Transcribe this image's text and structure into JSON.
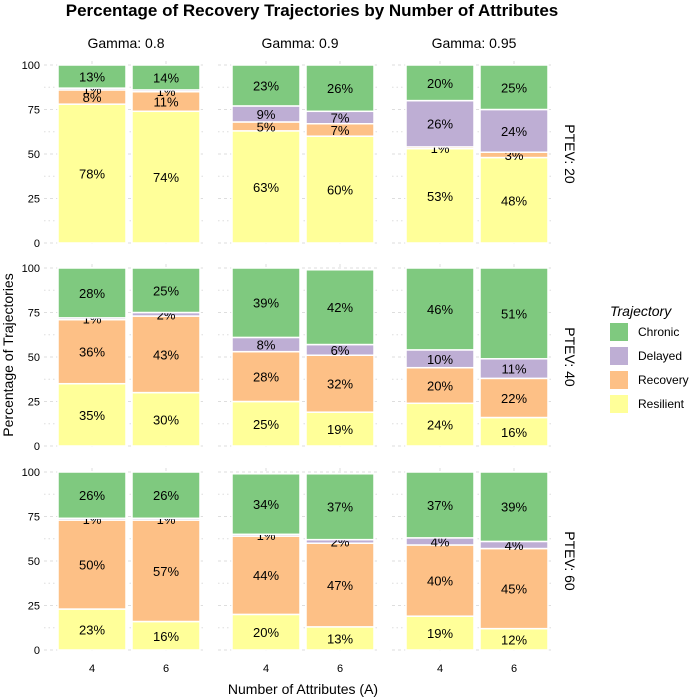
{
  "chart_data": {
    "type": "bar",
    "stacked": true,
    "faceted": true,
    "title": "Percentage of Recovery Trajectories by Number of Attributes",
    "xlabel": "Number of Attributes (A)",
    "ylabel": "Percentage of Trajectories",
    "ylim": [
      0,
      100
    ],
    "y_ticks": [
      "0",
      "25",
      "50",
      "75",
      "100"
    ],
    "categories": [
      "4",
      "6"
    ],
    "grid": true,
    "legend": {
      "title": "Trajectory",
      "position": "right",
      "entries": [
        "Chronic",
        "Delayed",
        "Recovery",
        "Resilient"
      ]
    },
    "colors": {
      "Resilient": "#ffff99",
      "Recovery": "#fdc086",
      "Delayed": "#beaed4",
      "Chronic": "#7fc97f"
    },
    "column_facets": [
      "Gamma: 0.8",
      "Gamma: 0.9",
      "Gamma: 0.95"
    ],
    "row_facets": [
      "PTEV: 20",
      "PTEV: 40",
      "PTEV: 60"
    ],
    "series_order": [
      "Resilient",
      "Recovery",
      "Delayed",
      "Chronic"
    ],
    "panels": [
      {
        "row": 0,
        "col": 0,
        "bars": [
          {
            "category": "4",
            "values": {
              "Resilient": 78,
              "Recovery": 8,
              "Delayed": 1,
              "Chronic": 13
            }
          },
          {
            "category": "6",
            "values": {
              "Resilient": 74,
              "Recovery": 11,
              "Delayed": 1,
              "Chronic": 14
            }
          }
        ]
      },
      {
        "row": 0,
        "col": 1,
        "bars": [
          {
            "category": "4",
            "values": {
              "Resilient": 63,
              "Recovery": 5,
              "Delayed": 9,
              "Chronic": 23
            }
          },
          {
            "category": "6",
            "values": {
              "Resilient": 60,
              "Recovery": 7,
              "Delayed": 7,
              "Chronic": 26
            }
          }
        ]
      },
      {
        "row": 0,
        "col": 2,
        "bars": [
          {
            "category": "4",
            "values": {
              "Resilient": 53,
              "Recovery": 1,
              "Delayed": 26,
              "Chronic": 20
            }
          },
          {
            "category": "6",
            "values": {
              "Resilient": 48,
              "Recovery": 3,
              "Delayed": 24,
              "Chronic": 25
            }
          }
        ]
      },
      {
        "row": 1,
        "col": 0,
        "bars": [
          {
            "category": "4",
            "values": {
              "Resilient": 35,
              "Recovery": 36,
              "Delayed": 1,
              "Chronic": 28
            }
          },
          {
            "category": "6",
            "values": {
              "Resilient": 30,
              "Recovery": 43,
              "Delayed": 2,
              "Chronic": 25
            }
          }
        ]
      },
      {
        "row": 1,
        "col": 1,
        "bars": [
          {
            "category": "4",
            "values": {
              "Resilient": 25,
              "Recovery": 28,
              "Delayed": 8,
              "Chronic": 39
            }
          },
          {
            "category": "6",
            "values": {
              "Resilient": 19,
              "Recovery": 32,
              "Delayed": 6,
              "Chronic": 42
            }
          }
        ]
      },
      {
        "row": 1,
        "col": 2,
        "bars": [
          {
            "category": "4",
            "values": {
              "Resilient": 24,
              "Recovery": 20,
              "Delayed": 10,
              "Chronic": 46
            }
          },
          {
            "category": "6",
            "values": {
              "Resilient": 16,
              "Recovery": 22,
              "Delayed": 11,
              "Chronic": 51
            }
          }
        ]
      },
      {
        "row": 2,
        "col": 0,
        "bars": [
          {
            "category": "4",
            "values": {
              "Resilient": 23,
              "Recovery": 50,
              "Delayed": 1,
              "Chronic": 26
            }
          },
          {
            "category": "6",
            "values": {
              "Resilient": 16,
              "Recovery": 57,
              "Delayed": 1,
              "Chronic": 26
            }
          }
        ]
      },
      {
        "row": 2,
        "col": 1,
        "bars": [
          {
            "category": "4",
            "values": {
              "Resilient": 20,
              "Recovery": 44,
              "Delayed": 1,
              "Chronic": 34
            }
          },
          {
            "category": "6",
            "values": {
              "Resilient": 13,
              "Recovery": 47,
              "Delayed": 2,
              "Chronic": 37
            }
          }
        ]
      },
      {
        "row": 2,
        "col": 2,
        "bars": [
          {
            "category": "4",
            "values": {
              "Resilient": 19,
              "Recovery": 40,
              "Delayed": 4,
              "Chronic": 37
            }
          },
          {
            "category": "6",
            "values": {
              "Resilient": 12,
              "Recovery": 45,
              "Delayed": 4,
              "Chronic": 39
            }
          }
        ]
      }
    ]
  }
}
